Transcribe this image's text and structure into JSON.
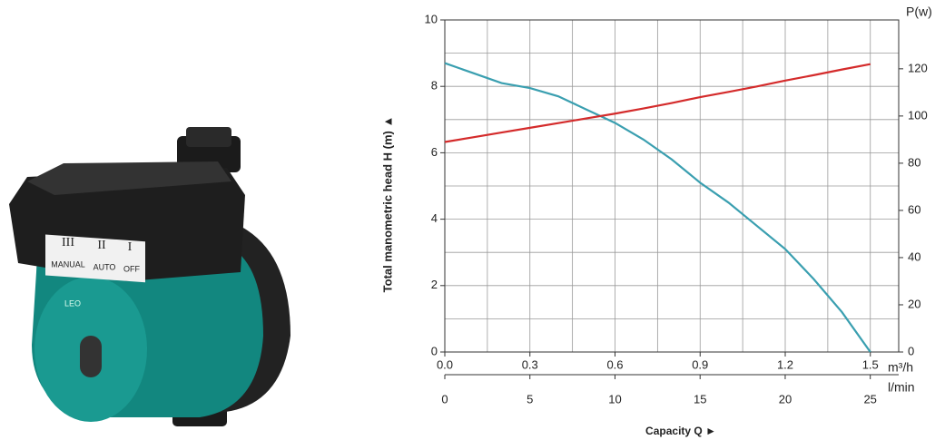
{
  "pump": {
    "switch_numerals": [
      "III",
      "II",
      "I"
    ],
    "switch_labels": [
      "MANUAL",
      "AUTO",
      "OFF"
    ],
    "brand": "LEO"
  },
  "chart_data": {
    "type": "line",
    "y_label": "Total manometric head H (m) ▲",
    "x_label": "Capacity Q ►",
    "y2_label": "P(w)",
    "x_unit": "m³/h",
    "x2_unit": "l/min",
    "x": [
      0,
      0.1,
      0.2,
      0.3,
      0.4,
      0.5,
      0.6,
      0.7,
      0.8,
      0.9,
      1.0,
      1.1,
      1.2,
      1.3,
      1.4,
      1.5
    ],
    "series": [
      {
        "color": "#3a9fb0",
        "values": [
          8.7,
          8.4,
          8.1,
          7.95,
          7.7,
          7.3,
          6.9,
          6.4,
          5.8,
          5.1,
          4.5,
          3.8,
          3.1,
          2.2,
          1.2,
          0
        ]
      },
      {
        "color": "#d42b2b",
        "axis": "y2",
        "values": [
          89,
          91,
          93,
          95,
          97,
          99,
          101,
          103.2,
          105.5,
          108,
          110.2,
          112.5,
          115,
          117.3,
          119.7,
          122
        ]
      }
    ],
    "xlim": [
      0,
      1.6
    ],
    "xticks": [
      {
        "value": 0,
        "label": "0.0"
      },
      0.3,
      0.6,
      0.9,
      1.2,
      1.5
    ],
    "xgrid": [
      0.15,
      0.45,
      0.75,
      1.05,
      1.35
    ],
    "x2lim": [
      0,
      26.67
    ],
    "x2ticks": [
      0,
      5,
      10,
      15,
      20,
      25
    ],
    "ylim": [
      0,
      10
    ],
    "yticks": [
      0,
      2,
      4,
      6,
      8,
      10
    ],
    "ygrid": [
      1,
      3,
      5,
      7,
      9
    ],
    "y2lim": [
      0,
      140.7
    ],
    "y2ticks": [
      0,
      20,
      40,
      60,
      80,
      100,
      120
    ],
    "grid": true
  }
}
